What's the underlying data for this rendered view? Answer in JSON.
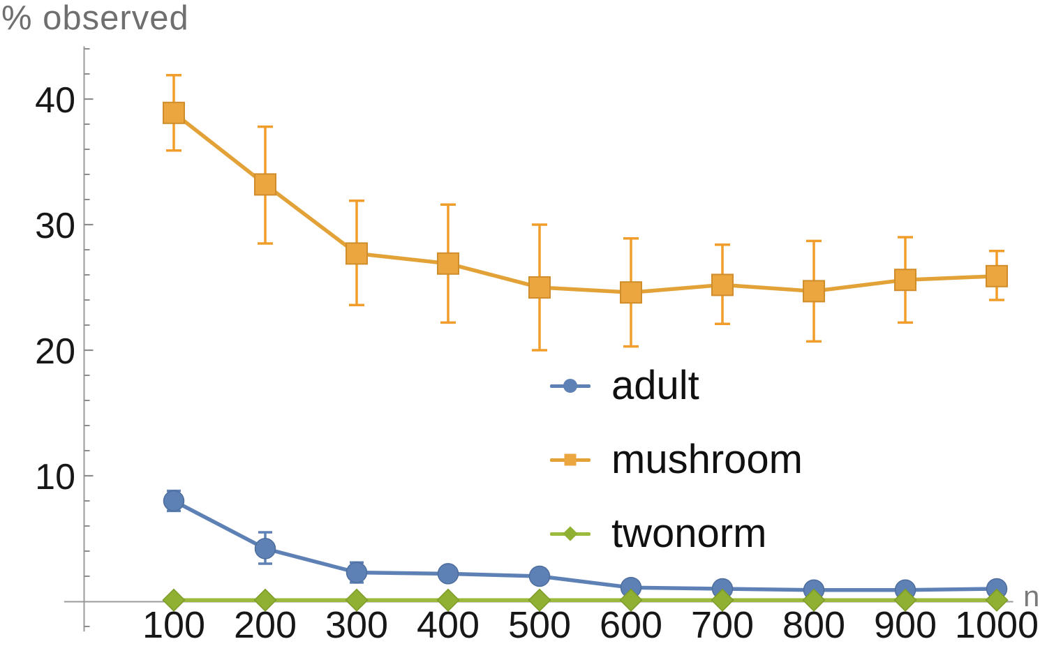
{
  "figure": {
    "y_axis_title": "% observed",
    "x_axis_title": "n"
  },
  "chart_data": {
    "type": "line",
    "title": "",
    "xlabel": "n",
    "ylabel": "% observed",
    "grid": false,
    "legend_position": "center-right-inside",
    "xlim": [
      -20,
      1018
    ],
    "ylim": [
      -2.4,
      44.2
    ],
    "xticks": [
      100,
      200,
      300,
      400,
      500,
      600,
      700,
      800,
      900,
      1000
    ],
    "yticks_major": [
      10,
      20,
      30,
      40
    ],
    "yticks_minor": [
      -2,
      2,
      4,
      6,
      8,
      12,
      14,
      16,
      18,
      22,
      24,
      26,
      28,
      32,
      34,
      36,
      38,
      42,
      44
    ],
    "x": [
      100,
      200,
      300,
      400,
      500,
      600,
      700,
      800,
      900,
      1000
    ],
    "series": [
      {
        "name": "adult",
        "marker": "circle",
        "color": "#5E81B5",
        "marker_fill": "#5E81B5",
        "marker_edge": "#4d6d9d",
        "error_color": "#5E81B5",
        "values": [
          8.0,
          4.2,
          2.3,
          2.2,
          2.0,
          1.1,
          1.0,
          0.9,
          0.9,
          1.0
        ],
        "err_minus": [
          0.8,
          1.2,
          0.8,
          0.3,
          0.3,
          0.2,
          0.2,
          0.2,
          0.2,
          0.2
        ],
        "err_plus": [
          0.8,
          1.3,
          0.8,
          0.3,
          0.3,
          0.2,
          0.2,
          0.2,
          0.2,
          0.2
        ]
      },
      {
        "name": "mushroom",
        "marker": "square",
        "color": "#E2A238",
        "marker_fill": "#EBA63F",
        "marker_edge": "#cf8d2b",
        "error_color": "#F09D2B",
        "values": [
          38.9,
          33.2,
          27.7,
          26.9,
          25.0,
          24.6,
          25.2,
          24.7,
          25.6,
          25.9
        ],
        "err_minus": [
          3.0,
          4.7,
          4.1,
          4.7,
          5.0,
          4.3,
          3.1,
          4.0,
          3.4,
          1.9
        ],
        "err_plus": [
          3.0,
          4.6,
          4.2,
          4.7,
          5.0,
          4.3,
          3.2,
          4.0,
          3.4,
          2.0
        ]
      },
      {
        "name": "twonorm",
        "marker": "diamond",
        "color": "#9CBB3D",
        "marker_fill": "#8FB032",
        "marker_edge": "#7d9c27",
        "error_color": "#8FB032",
        "values": [
          0.1,
          0.1,
          0.1,
          0.1,
          0.1,
          0.1,
          0.1,
          0.1,
          0.1,
          0.1
        ],
        "err_minus": [
          0.05,
          0.05,
          0.05,
          0.05,
          0.05,
          0.05,
          0.05,
          0.05,
          0.05,
          0.05
        ],
        "err_plus": [
          0.05,
          0.05,
          0.05,
          0.05,
          0.05,
          0.05,
          0.05,
          0.05,
          0.05,
          0.05
        ]
      }
    ],
    "axis_color": "#9a9a9a",
    "tick_color": "#8c8c8c",
    "tick_label_color": "#171717"
  }
}
